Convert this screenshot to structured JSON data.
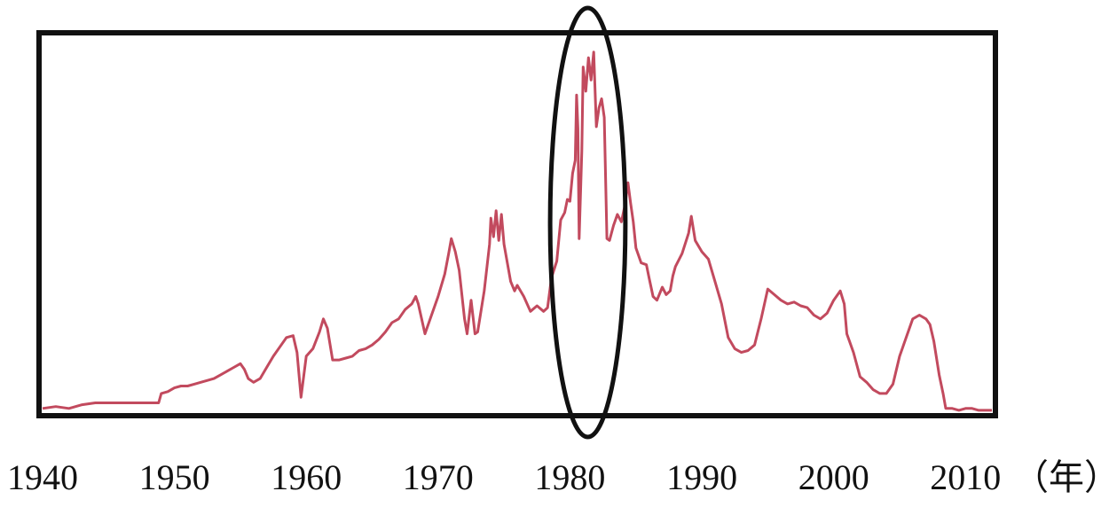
{
  "chart_data": {
    "type": "line",
    "title": "",
    "xlabel": "",
    "ylabel": "",
    "x_unit_label": "（年）",
    "xlim": [
      1940,
      2012
    ],
    "ylim": [
      0,
      20
    ],
    "xticks": [
      "1940",
      "1950",
      "1960",
      "1970",
      "1980",
      "1990",
      "2000",
      "2010"
    ],
    "grid": false,
    "legend": "none",
    "highlight": {
      "shape": "ellipse",
      "x_range": [
        1978.5,
        1984.2
      ]
    },
    "colors": {
      "line": "#c24a5e",
      "frame": "#111111",
      "highlight": "#111111"
    },
    "series": [
      {
        "values": [
          [
            1940.0,
            0.2
          ],
          [
            1941.0,
            0.3
          ],
          [
            1942.0,
            0.2
          ],
          [
            1943.0,
            0.4
          ],
          [
            1944.0,
            0.5
          ],
          [
            1945.0,
            0.5
          ],
          [
            1946.0,
            0.5
          ],
          [
            1947.0,
            0.5
          ],
          [
            1948.0,
            0.5
          ],
          [
            1948.8,
            0.5
          ],
          [
            1949.0,
            1.0
          ],
          [
            1949.5,
            1.1
          ],
          [
            1950.0,
            1.3
          ],
          [
            1950.5,
            1.4
          ],
          [
            1951.0,
            1.4
          ],
          [
            1951.5,
            1.5
          ],
          [
            1952.0,
            1.6
          ],
          [
            1952.5,
            1.7
          ],
          [
            1953.0,
            1.8
          ],
          [
            1953.5,
            2.0
          ],
          [
            1954.0,
            2.2
          ],
          [
            1954.5,
            2.4
          ],
          [
            1955.0,
            2.6
          ],
          [
            1955.3,
            2.3
          ],
          [
            1955.6,
            1.8
          ],
          [
            1956.0,
            1.6
          ],
          [
            1956.5,
            1.8
          ],
          [
            1957.0,
            2.4
          ],
          [
            1957.5,
            3.0
          ],
          [
            1958.0,
            3.5
          ],
          [
            1958.5,
            4.0
          ],
          [
            1959.0,
            4.1
          ],
          [
            1959.3,
            3.2
          ],
          [
            1959.6,
            0.8
          ],
          [
            1960.0,
            3.0
          ],
          [
            1960.5,
            3.4
          ],
          [
            1961.0,
            4.3
          ],
          [
            1961.3,
            5.0
          ],
          [
            1961.6,
            4.5
          ],
          [
            1962.0,
            2.8
          ],
          [
            1962.5,
            2.8
          ],
          [
            1963.0,
            2.9
          ],
          [
            1963.5,
            3.0
          ],
          [
            1964.0,
            3.3
          ],
          [
            1964.5,
            3.4
          ],
          [
            1965.0,
            3.6
          ],
          [
            1965.5,
            3.9
          ],
          [
            1966.0,
            4.3
          ],
          [
            1966.5,
            4.8
          ],
          [
            1967.0,
            5.0
          ],
          [
            1967.5,
            5.5
          ],
          [
            1968.0,
            5.8
          ],
          [
            1968.3,
            6.2
          ],
          [
            1968.5,
            5.8
          ],
          [
            1969.0,
            4.2
          ],
          [
            1969.5,
            5.2
          ],
          [
            1970.0,
            6.2
          ],
          [
            1970.5,
            7.4
          ],
          [
            1970.8,
            8.5
          ],
          [
            1971.0,
            9.3
          ],
          [
            1971.3,
            8.6
          ],
          [
            1971.6,
            7.6
          ],
          [
            1972.0,
            5.0
          ],
          [
            1972.2,
            4.2
          ],
          [
            1972.5,
            6.0
          ],
          [
            1972.8,
            4.2
          ],
          [
            1973.0,
            4.3
          ],
          [
            1973.5,
            6.5
          ],
          [
            1973.9,
            9.0
          ],
          [
            1974.0,
            10.4
          ],
          [
            1974.2,
            9.4
          ],
          [
            1974.4,
            10.8
          ],
          [
            1974.6,
            9.2
          ],
          [
            1974.8,
            10.6
          ],
          [
            1975.0,
            9.0
          ],
          [
            1975.2,
            8.2
          ],
          [
            1975.5,
            7.0
          ],
          [
            1975.8,
            6.5
          ],
          [
            1976.0,
            6.8
          ],
          [
            1976.5,
            6.2
          ],
          [
            1977.0,
            5.4
          ],
          [
            1977.5,
            5.7
          ],
          [
            1978.0,
            5.4
          ],
          [
            1978.3,
            5.6
          ],
          [
            1978.6,
            7.2
          ],
          [
            1979.0,
            8.1
          ],
          [
            1979.3,
            10.3
          ],
          [
            1979.6,
            10.7
          ],
          [
            1979.8,
            11.4
          ],
          [
            1980.0,
            11.3
          ],
          [
            1980.2,
            12.8
          ],
          [
            1980.4,
            13.5
          ],
          [
            1980.5,
            17.0
          ],
          [
            1980.6,
            15.2
          ],
          [
            1980.7,
            9.3
          ],
          [
            1980.9,
            14.0
          ],
          [
            1981.0,
            18.5
          ],
          [
            1981.2,
            17.2
          ],
          [
            1981.4,
            19.0
          ],
          [
            1981.6,
            17.8
          ],
          [
            1981.8,
            19.3
          ],
          [
            1982.0,
            15.3
          ],
          [
            1982.2,
            16.3
          ],
          [
            1982.4,
            16.8
          ],
          [
            1982.6,
            15.8
          ],
          [
            1982.8,
            9.3
          ],
          [
            1983.0,
            9.2
          ],
          [
            1983.3,
            10.0
          ],
          [
            1983.6,
            10.6
          ],
          [
            1983.9,
            10.2
          ],
          [
            1984.2,
            11.2
          ],
          [
            1984.4,
            12.3
          ],
          [
            1984.6,
            11.2
          ],
          [
            1984.8,
            10.2
          ],
          [
            1985.0,
            8.8
          ],
          [
            1985.4,
            8.0
          ],
          [
            1985.8,
            7.9
          ],
          [
            1986.0,
            7.2
          ],
          [
            1986.3,
            6.2
          ],
          [
            1986.6,
            6.0
          ],
          [
            1987.0,
            6.7
          ],
          [
            1987.3,
            6.3
          ],
          [
            1987.6,
            6.5
          ],
          [
            1987.8,
            7.3
          ],
          [
            1988.0,
            7.8
          ],
          [
            1988.5,
            8.5
          ],
          [
            1989.0,
            9.6
          ],
          [
            1989.2,
            10.5
          ],
          [
            1989.5,
            9.2
          ],
          [
            1990.0,
            8.6
          ],
          [
            1990.5,
            8.2
          ],
          [
            1991.0,
            7.0
          ],
          [
            1991.5,
            5.8
          ],
          [
            1992.0,
            4.0
          ],
          [
            1992.5,
            3.4
          ],
          [
            1993.0,
            3.2
          ],
          [
            1993.5,
            3.3
          ],
          [
            1994.0,
            3.6
          ],
          [
            1994.5,
            5.0
          ],
          [
            1995.0,
            6.6
          ],
          [
            1995.5,
            6.3
          ],
          [
            1996.0,
            6.0
          ],
          [
            1996.5,
            5.8
          ],
          [
            1997.0,
            5.9
          ],
          [
            1997.5,
            5.7
          ],
          [
            1998.0,
            5.6
          ],
          [
            1998.5,
            5.2
          ],
          [
            1999.0,
            5.0
          ],
          [
            1999.5,
            5.3
          ],
          [
            2000.0,
            6.0
          ],
          [
            2000.5,
            6.5
          ],
          [
            2000.8,
            5.8
          ],
          [
            2001.0,
            4.2
          ],
          [
            2001.5,
            3.2
          ],
          [
            2002.0,
            1.9
          ],
          [
            2002.5,
            1.6
          ],
          [
            2003.0,
            1.2
          ],
          [
            2003.5,
            1.0
          ],
          [
            2004.0,
            1.0
          ],
          [
            2004.5,
            1.5
          ],
          [
            2005.0,
            3.0
          ],
          [
            2005.5,
            4.0
          ],
          [
            2006.0,
            5.0
          ],
          [
            2006.5,
            5.2
          ],
          [
            2007.0,
            5.0
          ],
          [
            2007.3,
            4.7
          ],
          [
            2007.6,
            3.8
          ],
          [
            2008.0,
            2.0
          ],
          [
            2008.3,
            1.0
          ],
          [
            2008.5,
            0.2
          ],
          [
            2009.0,
            0.2
          ],
          [
            2009.5,
            0.1
          ],
          [
            2010.0,
            0.2
          ],
          [
            2010.5,
            0.2
          ],
          [
            2011.0,
            0.1
          ],
          [
            2012.0,
            0.1
          ]
        ]
      }
    ]
  }
}
